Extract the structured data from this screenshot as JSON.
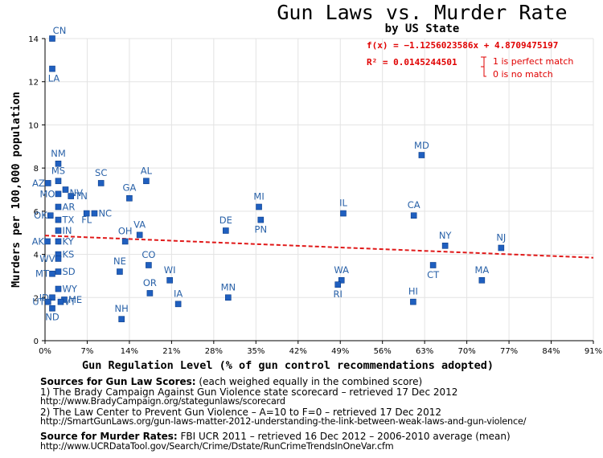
{
  "chart_data": {
    "type": "scatter",
    "title": "Gun Laws vs. Murder Rate",
    "subtitle": "by US State",
    "xlabel": "Gun Regulation Level (% of gun control recommendations adopted)",
    "ylabel": "Murders per 100,000 population",
    "xlim": [
      0,
      91
    ],
    "ylim": [
      0,
      14
    ],
    "x_ticks": [
      "0%",
      "7%",
      "14%",
      "21%",
      "28%",
      "35%",
      "42%",
      "49%",
      "56%",
      "63%",
      "70%",
      "77%",
      "84%",
      "91%"
    ],
    "y_ticks": [
      "0",
      "2",
      "4",
      "6",
      "8",
      "10",
      "12",
      "14"
    ],
    "grid": true,
    "point_color": "#1f5fbf",
    "label_color": "#2a62a8",
    "points": [
      {
        "label": "CN",
        "x": 1.2,
        "y": 14.0
      },
      {
        "label": "LA",
        "x": 1.2,
        "y": 12.6
      },
      {
        "label": "MD",
        "x": 62.5,
        "y": 8.6
      },
      {
        "label": "NM",
        "x": 2.2,
        "y": 8.2
      },
      {
        "label": "MS",
        "x": 2.2,
        "y": 7.4
      },
      {
        "label": "AZ",
        "x": 0.5,
        "y": 7.3
      },
      {
        "label": "SC",
        "x": 9.3,
        "y": 7.3
      },
      {
        "label": "AL",
        "x": 16.8,
        "y": 7.4
      },
      {
        "label": "NV",
        "x": 3.4,
        "y": 7.0
      },
      {
        "label": "MO",
        "x": 2.2,
        "y": 6.8
      },
      {
        "label": "TN",
        "x": 4.3,
        "y": 6.7
      },
      {
        "label": "GA",
        "x": 14.0,
        "y": 6.6
      },
      {
        "label": "MI",
        "x": 35.5,
        "y": 6.2
      },
      {
        "label": "AR",
        "x": 2.2,
        "y": 6.2
      },
      {
        "label": "NC",
        "x": 8.2,
        "y": 5.9
      },
      {
        "label": "FL",
        "x": 6.9,
        "y": 5.9
      },
      {
        "label": "IL",
        "x": 49.5,
        "y": 5.9
      },
      {
        "label": "CA",
        "x": 61.2,
        "y": 5.8
      },
      {
        "label": "OK",
        "x": 0.9,
        "y": 5.8
      },
      {
        "label": "PN",
        "x": 35.8,
        "y": 5.6
      },
      {
        "label": "TX",
        "x": 2.2,
        "y": 5.6
      },
      {
        "label": "IN",
        "x": 2.2,
        "y": 5.1
      },
      {
        "label": "DE",
        "x": 30.0,
        "y": 5.1
      },
      {
        "label": "VA",
        "x": 15.7,
        "y": 4.9
      },
      {
        "label": "OH",
        "x": 13.3,
        "y": 4.6
      },
      {
        "label": "KY",
        "x": 2.2,
        "y": 4.6
      },
      {
        "label": "AK",
        "x": 0.4,
        "y": 4.6
      },
      {
        "label": "NY",
        "x": 66.4,
        "y": 4.4
      },
      {
        "label": "NJ",
        "x": 75.7,
        "y": 4.3
      },
      {
        "label": "KS",
        "x": 2.2,
        "y": 4.0
      },
      {
        "label": "WV",
        "x": 2.2,
        "y": 3.8
      },
      {
        "label": "CO",
        "x": 17.2,
        "y": 3.5
      },
      {
        "label": "CT",
        "x": 64.4,
        "y": 3.5
      },
      {
        "label": "NE",
        "x": 12.4,
        "y": 3.2
      },
      {
        "label": "SD",
        "x": 2.2,
        "y": 3.2
      },
      {
        "label": "MT",
        "x": 1.2,
        "y": 3.1
      },
      {
        "label": "WI",
        "x": 20.7,
        "y": 2.8
      },
      {
        "label": "MA",
        "x": 72.5,
        "y": 2.8
      },
      {
        "label": "WA",
        "x": 49.2,
        "y": 2.8
      },
      {
        "label": "RI",
        "x": 48.6,
        "y": 2.6
      },
      {
        "label": "WY",
        "x": 2.2,
        "y": 2.4
      },
      {
        "label": "OR",
        "x": 17.4,
        "y": 2.2
      },
      {
        "label": "MN",
        "x": 30.4,
        "y": 2.0
      },
      {
        "label": "ID",
        "x": 1.2,
        "y": 2.0
      },
      {
        "label": "ME",
        "x": 3.2,
        "y": 1.9
      },
      {
        "label": "HI",
        "x": 61.1,
        "y": 1.8
      },
      {
        "label": "UT",
        "x": 0.5,
        "y": 1.8
      },
      {
        "label": "VT",
        "x": 2.6,
        "y": 1.8
      },
      {
        "label": "IA",
        "x": 22.1,
        "y": 1.7
      },
      {
        "label": "ND",
        "x": 1.2,
        "y": 1.5
      },
      {
        "label": "NH",
        "x": 12.7,
        "y": 1.0
      }
    ],
    "trendline": {
      "formula": "f(x) = −1.1256023586x + 4.8709475197",
      "r_squared": "R² = 0.0145244501",
      "slope": -1.1256023586,
      "intercept": 4.8709475197,
      "color": "#e01818",
      "note_1": "1 is perfect match",
      "note_0": "0 is no match"
    }
  },
  "notes": {
    "gun_law_heading": "Sources for Gun Law Scores:",
    "gun_law_heading_suffix": "  (each weighed equally in the combined score)",
    "source_1": "1)  The Brady Campaign Against Gun Violence state scorecard  –  retrieved 17  Dec 2012",
    "source_1_url": "http://www.BradyCampaign.org/stategunlaws/scorecard",
    "source_2": "2)  The Law Center to Prevent Gun Violence  –  A=10  to F=0  –  retrieved 17  Dec 2012",
    "source_2_url": "http://SmartGunLaws.org/gun-laws-matter-2012-understanding-the-link-between-weak-laws-and-gun-violence/",
    "murder_heading": "Source for Murder Rates:",
    "murder_source": " FBI UCR 2011  –  retrieved 16  Dec 2012  –  2006-2010  average (mean)",
    "murder_url": "http://www.UCRDataTool.gov/Search/Crime/Dstate/RunCrimeTrendsInOneVar.cfm"
  }
}
